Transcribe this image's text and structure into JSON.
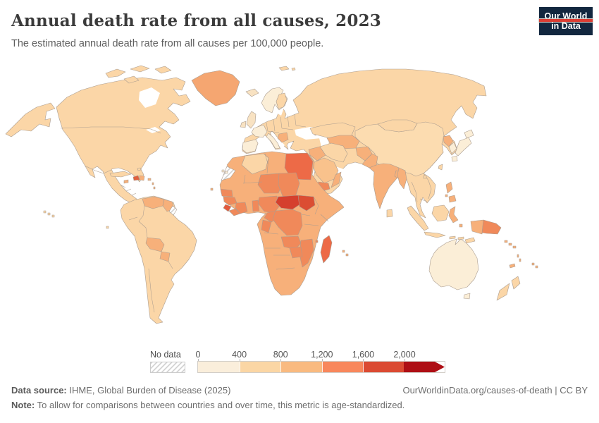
{
  "header": {
    "title": "Annual death rate from all causes, 2023",
    "subtitle": "The estimated annual death rate from all causes per 100,000 people.",
    "logo": {
      "line1": "Our World",
      "line2": "in Data",
      "bg_color": "#12273f",
      "accent_color": "#dc3d33"
    }
  },
  "chart_data": {
    "type": "choropleth",
    "title": "Annual death rate from all causes",
    "year": "2023",
    "unit": "deaths from all causes per 100,000 people",
    "projection": "world",
    "legend": {
      "no_data_label": "No data",
      "tick_labels": [
        "0",
        "400",
        "800",
        "1,200",
        "1,600",
        "2,000"
      ],
      "bins": [
        {
          "range": "0–400",
          "color": "#faeedb"
        },
        {
          "range": "400–800",
          "color": "#fbd6a4"
        },
        {
          "range": "800–1,200",
          "color": "#f9ba80"
        },
        {
          "range": "1,200–1,600",
          "color": "#f8875c"
        },
        {
          "range": "1,600–2,000",
          "color": "#db4a32"
        },
        {
          "range": "2,000+",
          "color": "#ae0e14"
        }
      ],
      "open_ended_arrow": true,
      "border_color": "#ab9d90"
    },
    "regions": [
      {
        "id": "alaska",
        "name": "United States (Alaska)",
        "color": "#fbd6a7"
      },
      {
        "id": "north-america",
        "name": "Canada, United States, Mexico & Central America",
        "color": "#fbd6a7"
      },
      {
        "id": "arctic-islands",
        "name": "Canadian Arctic islands",
        "color": "#fbd6a7"
      },
      {
        "id": "greenland",
        "name": "Greenland",
        "color": "#f5a671"
      },
      {
        "id": "hawaii",
        "name": "Hawaii",
        "color": "#fbd6a7"
      },
      {
        "id": "bahamas",
        "name": "Bahamas",
        "color": "#fbd6a7"
      },
      {
        "id": "cuba",
        "name": "Cuba",
        "color": "#fbd6a7"
      },
      {
        "id": "haiti",
        "name": "Haiti",
        "color": "#e0603f"
      },
      {
        "id": "dominican-republic",
        "name": "Dominican Republic",
        "color": "#f7b07a"
      },
      {
        "id": "jamaica",
        "name": "Jamaica",
        "color": "#f7b07a"
      },
      {
        "id": "puerto-rico",
        "name": "Puerto Rico",
        "color": "#f7b07a"
      },
      {
        "id": "lesser-antilles",
        "name": "Lesser Antilles",
        "color": "#f7b07a"
      },
      {
        "id": "south-america",
        "name": "South America (Colombia, Ecuador, Peru, Brazil, Chile, Argentina, Uruguay)",
        "color": "#fbd6a7"
      },
      {
        "id": "venezuela",
        "name": "Venezuela",
        "color": "#f7b07a"
      },
      {
        "id": "guyana-suriname",
        "name": "Guyana & Suriname",
        "color": "#f7b07a"
      },
      {
        "id": "french-guiana",
        "name": "French Guiana",
        "color": "hatch"
      },
      {
        "id": "bolivia",
        "name": "Bolivia",
        "color": "#f7b07a"
      },
      {
        "id": "paraguay",
        "name": "Paraguay",
        "color": "#f7b07a"
      },
      {
        "id": "galapagos",
        "name": "Galapagos Islands",
        "color": "#fbd6a7"
      },
      {
        "id": "eurasia",
        "name": "Eurasia mainland (Russia, Eastern Europe, Turkey, Iran, Indochina)",
        "color": "#fbd6a7"
      },
      {
        "id": "scandinavia",
        "name": "Norway & Sweden",
        "color": "#fbeed7"
      },
      {
        "id": "finland",
        "name": "Finland",
        "color": "#fbd6a7"
      },
      {
        "id": "iceland",
        "name": "Iceland",
        "color": "#f8e2c2"
      },
      {
        "id": "uk",
        "name": "United Kingdom",
        "color": "#f8e2c2"
      },
      {
        "id": "ireland",
        "name": "Ireland",
        "color": "#f8e2c2"
      },
      {
        "id": "france",
        "name": "France",
        "color": "#fbeed7"
      },
      {
        "id": "iberia",
        "name": "Spain & Portugal",
        "color": "#fbeed7"
      },
      {
        "id": "italy",
        "name": "Italy",
        "color": "#fbeed7"
      },
      {
        "id": "balkans",
        "name": "Western Balkans",
        "color": "#f7b07a"
      },
      {
        "id": "caucasus",
        "name": "Caucasus",
        "color": "#f7b07a"
      },
      {
        "id": "kazakhstan",
        "name": "Kazakhstan",
        "color": "#fbd6a7"
      },
      {
        "id": "mongolia",
        "name": "Mongolia",
        "color": "#fbd6a7"
      },
      {
        "id": "china",
        "name": "China",
        "color": "#fcdcb0"
      },
      {
        "id": "central-asia",
        "name": "Turkmenistan, Uzbekistan, Kyrgyzstan & Tajikistan",
        "color": "#f7b07a"
      },
      {
        "id": "afghanistan",
        "name": "Afghanistan",
        "color": "#f7b07a"
      },
      {
        "id": "pakistan",
        "name": "Pakistan",
        "color": "#f7b07a"
      },
      {
        "id": "india",
        "name": "India",
        "color": "#f7b07a"
      },
      {
        "id": "bangladesh",
        "name": "Bangladesh",
        "color": "#f7b07a"
      },
      {
        "id": "myanmar",
        "name": "Myanmar",
        "color": "#f7b07a"
      },
      {
        "id": "sri-lanka",
        "name": "Sri Lanka",
        "color": "#fbd6a7"
      },
      {
        "id": "iraq-syria",
        "name": "Iraq & Syria",
        "color": "#f7b07a"
      },
      {
        "id": "iran",
        "name": "Iran",
        "color": "#fbd6a7"
      },
      {
        "id": "saudi-arabia",
        "name": "Saudi Arabia",
        "color": "#f9c28c"
      },
      {
        "id": "yemen",
        "name": "Yemen",
        "color": "#f0895a"
      },
      {
        "id": "oman",
        "name": "Oman",
        "color": "#f7b07a"
      },
      {
        "id": "north-korea",
        "name": "North Korea",
        "color": "#f7b07a"
      },
      {
        "id": "south-korea",
        "name": "South Korea",
        "color": "#fbeed7"
      },
      {
        "id": "japan",
        "name": "Japan",
        "color": "#fbeed7"
      },
      {
        "id": "taiwan",
        "name": "Taiwan",
        "color": "#fbd6a7"
      },
      {
        "id": "philippines",
        "name": "Philippines",
        "color": "#f7b07a"
      },
      {
        "id": "hainan",
        "name": "Hainan",
        "color": "#fbd6a7"
      },
      {
        "id": "sumatra",
        "name": "Indonesia (Sumatra)",
        "color": "#fbd6a7"
      },
      {
        "id": "java",
        "name": "Indonesia (Java)",
        "color": "#fbd6a7"
      },
      {
        "id": "borneo",
        "name": "Borneo",
        "color": "#fbd6a7"
      },
      {
        "id": "sulawesi",
        "name": "Indonesia (Sulawesi)",
        "color": "#f7b07a"
      },
      {
        "id": "lesser-sunda",
        "name": "Lesser Sunda Islands",
        "color": "#fbd6a7"
      },
      {
        "id": "maluku",
        "name": "Maluku Islands",
        "color": "#f7b07a"
      },
      {
        "id": "timor",
        "name": "Timor",
        "color": "#fbd6a7"
      },
      {
        "id": "papua-indonesia",
        "name": "Indonesia (Papua)",
        "color": "#f7b07a"
      },
      {
        "id": "papua-new-guinea",
        "name": "Papua New Guinea",
        "color": "#f0895a"
      },
      {
        "id": "africa",
        "name": "Africa (most countries)",
        "color": "#f7b07a"
      },
      {
        "id": "algeria",
        "name": "Algeria",
        "color": "#fbd6a7"
      },
      {
        "id": "western-sahara",
        "name": "Western Sahara",
        "color": "hatch"
      },
      {
        "id": "egypt",
        "name": "Egypt",
        "color": "#ed6a47"
      },
      {
        "id": "niger",
        "name": "Niger",
        "color": "#f0895a"
      },
      {
        "id": "chad",
        "name": "Chad",
        "color": "#f0895a"
      },
      {
        "id": "senegal",
        "name": "Senegal",
        "color": "#f0895a"
      },
      {
        "id": "guinea",
        "name": "Guinea",
        "color": "#f0895a"
      },
      {
        "id": "sierra-leone",
        "name": "Sierra Leone",
        "color": "#e3593c"
      },
      {
        "id": "liberia",
        "name": "Liberia",
        "color": "#f0895a"
      },
      {
        "id": "cote-divoire",
        "name": "Côte d'Ivoire",
        "color": "#f0895a"
      },
      {
        "id": "togo-benin",
        "name": "Togo & Benin",
        "color": "#f0895a"
      },
      {
        "id": "nigeria",
        "name": "Nigeria",
        "color": "#f0895a"
      },
      {
        "id": "cameroon",
        "name": "Cameroon",
        "color": "#f0895a"
      },
      {
        "id": "central-african-republic",
        "name": "Central African Republic",
        "color": "#d5402e"
      },
      {
        "id": "south-sudan",
        "name": "South Sudan",
        "color": "#db4d33"
      },
      {
        "id": "drc",
        "name": "Democratic Republic of Congo",
        "color": "#f0895a"
      },
      {
        "id": "congo",
        "name": "Congo",
        "color": "#f0895a"
      },
      {
        "id": "zambia",
        "name": "Zambia",
        "color": "#f0895a"
      },
      {
        "id": "mozambique",
        "name": "Mozambique & Malawi",
        "color": "#f0895a"
      },
      {
        "id": "zimbabwe",
        "name": "Zimbabwe",
        "color": "#f0895a"
      },
      {
        "id": "madagascar",
        "name": "Madagascar",
        "color": "#ed6a47"
      },
      {
        "id": "comoros",
        "name": "Comoros",
        "color": "#f0895a"
      },
      {
        "id": "mauritius",
        "name": "Mauritius & Réunion",
        "color": "#f7b07a"
      },
      {
        "id": "cape-verde",
        "name": "Cape Verde",
        "color": "#f7b07a"
      },
      {
        "id": "canary",
        "name": "Canary Islands",
        "color": "#fbeed7"
      },
      {
        "id": "svalbard",
        "name": "Svalbard",
        "color": "#fbd6a7"
      },
      {
        "id": "australia",
        "name": "Australia",
        "color": "#fbeed7"
      },
      {
        "id": "tasmania",
        "name": "Tasmania",
        "color": "#fbeed7"
      },
      {
        "id": "new-zealand",
        "name": "New Zealand",
        "color": "#fbd6a7"
      },
      {
        "id": "new-caledonia",
        "name": "New Caledonia",
        "color": "#f7b07a"
      },
      {
        "id": "fiji",
        "name": "Fiji",
        "color": "#f7b07a"
      },
      {
        "id": "vanuatu",
        "name": "Vanuatu",
        "color": "#f7b07a"
      },
      {
        "id": "solomon-islands",
        "name": "Solomon Islands",
        "color": "#f7b07a"
      }
    ]
  },
  "footer": {
    "datasource_label": "Data source:",
    "datasource": " IHME, Global Burden of Disease (2025)",
    "link": "OurWorldinData.org/causes-of-death | CC BY",
    "note_label": "Note:",
    "note": " To allow for comparisons between countries and over time, this metric is age-standardized."
  }
}
